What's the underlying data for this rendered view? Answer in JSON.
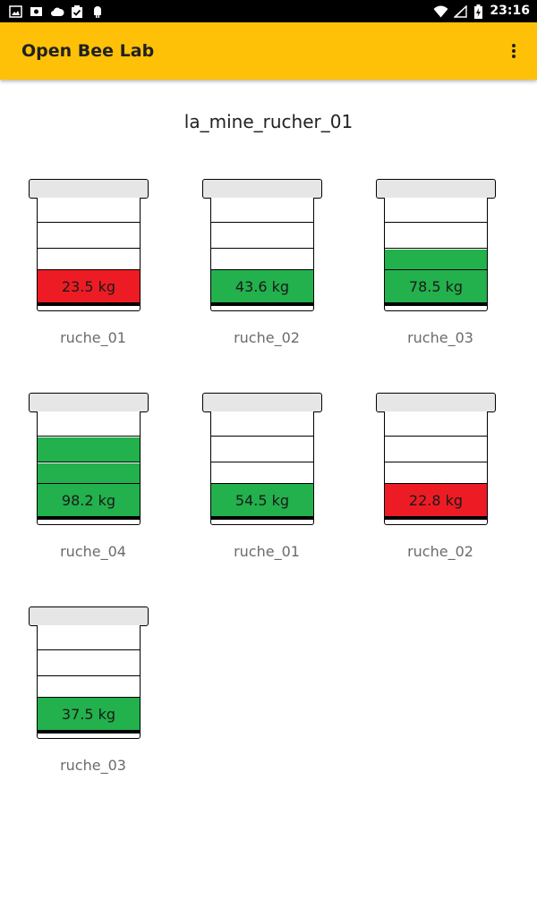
{
  "status_bar": {
    "time": "23:16",
    "icons_left": [
      "image-icon",
      "photo-icon",
      "cloud-icon",
      "clipboard-check-icon",
      "android-icon"
    ],
    "icons_right": [
      "wifi-icon",
      "signal-icon",
      "battery-charging-icon"
    ]
  },
  "app_bar": {
    "title": "Open Bee Lab",
    "menu_icon": "more-vert-icon",
    "color": "#FFC107"
  },
  "page": {
    "title": "la_mine_rucher_01"
  },
  "colors": {
    "ok": "#22B14C",
    "alert": "#ED1C24",
    "roof": "#e6e6e6"
  },
  "hives": [
    {
      "name": "ruche_01",
      "weight": "23.5 kg",
      "status": "alert",
      "filled_supers": 0
    },
    {
      "name": "ruche_02",
      "weight": "43.6 kg",
      "status": "ok",
      "filled_supers": 0
    },
    {
      "name": "ruche_03",
      "weight": "78.5 kg",
      "status": "ok",
      "filled_supers": 1
    },
    {
      "name": "ruche_04",
      "weight": "98.2 kg",
      "status": "ok",
      "filled_supers": 2
    },
    {
      "name": "ruche_01",
      "weight": "54.5 kg",
      "status": "ok",
      "filled_supers": 0
    },
    {
      "name": "ruche_02",
      "weight": "22.8 kg",
      "status": "alert",
      "filled_supers": 0
    },
    {
      "name": "ruche_03",
      "weight": "37.5 kg",
      "status": "ok",
      "filled_supers": 0
    }
  ]
}
